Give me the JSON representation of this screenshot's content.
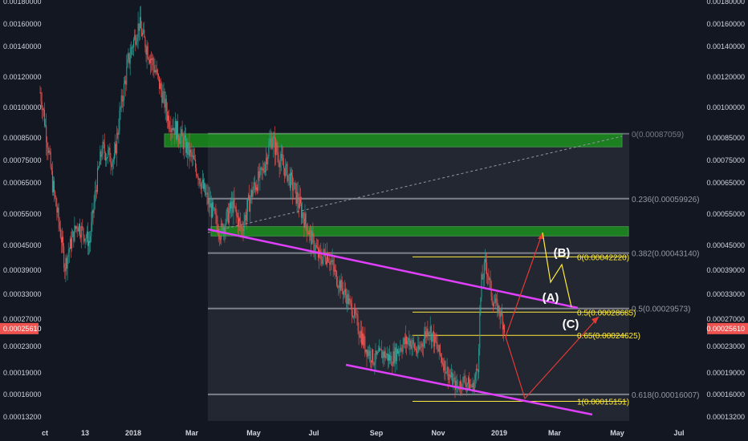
{
  "chart_data": {
    "type": "candlestick",
    "price_axis": {
      "labels": [
        "0.00180000",
        "0.00160000",
        "0.00140000",
        "0.00120000",
        "0.00100000",
        "0.00085000",
        "0.00075000",
        "0.00065000",
        "0.00055000",
        "0.00045000",
        "0.00039000",
        "0.00033000",
        "0.00027000",
        "0.00023000",
        "0.00019000",
        "0.00016000",
        "0.00013200"
      ],
      "current_price": "0.00025610",
      "current_price_color": "#ef5350"
    },
    "time_axis": {
      "labels": [
        "ct",
        "13",
        "2018",
        "Mar",
        "May",
        "Jul",
        "Sep",
        "Nov",
        "2019",
        "Mar",
        "May",
        "Jul"
      ]
    },
    "series": {
      "up_color": "#26a69a",
      "down_color": "#ef5350",
      "path": [
        [
          0,
          0.0011
        ],
        [
          14,
          0.00065
        ],
        [
          28,
          0.0004
        ],
        [
          42,
          0.00052
        ],
        [
          56,
          0.00046
        ],
        [
          70,
          0.0008
        ],
        [
          84,
          0.00075
        ],
        [
          100,
          0.0013
        ],
        [
          112,
          0.0016
        ],
        [
          118,
          0.00145
        ],
        [
          130,
          0.00125
        ],
        [
          145,
          0.00095
        ],
        [
          160,
          0.00085
        ],
        [
          172,
          0.00076
        ],
        [
          186,
          0.00062
        ],
        [
          196,
          0.00055
        ],
        [
          204,
          0.00049
        ],
        [
          218,
          0.00058
        ],
        [
          228,
          0.0005
        ],
        [
          240,
          0.00062
        ],
        [
          252,
          0.0007
        ],
        [
          262,
          0.00085
        ],
        [
          272,
          0.00075
        ],
        [
          284,
          0.00066
        ],
        [
          296,
          0.00056
        ],
        [
          306,
          0.00048
        ],
        [
          316,
          0.00042
        ],
        [
          326,
          0.00043
        ],
        [
          336,
          0.00037
        ],
        [
          348,
          0.00032
        ],
        [
          358,
          0.00027
        ],
        [
          368,
          0.00023
        ],
        [
          378,
          0.00021
        ],
        [
          388,
          0.00022
        ],
        [
          398,
          0.00021
        ],
        [
          408,
          0.00023
        ],
        [
          418,
          0.00024
        ],
        [
          428,
          0.00022
        ],
        [
          440,
          0.00026
        ],
        [
          452,
          0.00022
        ],
        [
          462,
          0.00019
        ],
        [
          472,
          0.00017
        ],
        [
          480,
          0.00018
        ],
        [
          490,
          0.00017
        ],
        [
          496,
          0.0002
        ],
        [
          500,
          0.00036
        ],
        [
          505,
          0.00041
        ],
        [
          512,
          0.00032
        ],
        [
          520,
          0.00029
        ],
        [
          526,
          0.00026
        ]
      ]
    },
    "fibonacci": {
      "levels": [
        {
          "label": "0(0.00087059)",
          "value": 0.00087059,
          "color": "#787b86"
        },
        {
          "label": "0.236(0.00059926)",
          "value": 0.00059926,
          "color": "#9598a1"
        },
        {
          "label": "0.382(0.00043140)",
          "value": 0.0004314,
          "color": "#9598a1"
        },
        {
          "label": "0.5(0.00029573)",
          "value": 0.00029573,
          "color": "#9598a1"
        },
        {
          "label": "0.618(0.00016007)",
          "value": 0.00016007,
          "color": "#9598a1"
        }
      ]
    },
    "fibonacci_extension": {
      "levels": [
        {
          "label": "0(0.00042220)",
          "value": 0.0004222,
          "color": "#ffeb3b"
        },
        {
          "label": "0.5(0.00028685)",
          "value": 0.00028685,
          "color": "#ffeb3b"
        },
        {
          "label": "0.65(0.00024625)",
          "value": 0.00024625,
          "color": "#ffeb3b"
        },
        {
          "label": "1(0.00015151)",
          "value": 0.00015151,
          "color": "#ffeb3b"
        }
      ]
    },
    "zones": [
      {
        "name": "resistance-zone-upper",
        "top": 0.00087,
        "bottom": 0.00081,
        "color": "#1b9e1b"
      },
      {
        "name": "resistance-zone-lower",
        "top": 0.00051,
        "bottom": 0.00048,
        "color": "#1b9e1b"
      }
    ],
    "wave_labels": [
      "(A)",
      "(B)",
      "(C)"
    ],
    "colors": {
      "background": "#131722",
      "fib_box": "#262a35",
      "channel": "#e040fb",
      "projection_red": "#e53935",
      "projection_yellow": "#ffeb3b",
      "zone": "#1b9e1b"
    }
  }
}
